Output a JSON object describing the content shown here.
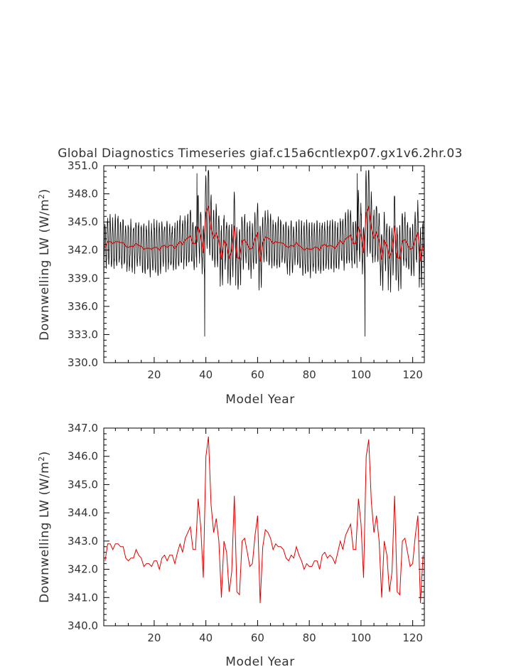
{
  "title": "Global Diagnostics Timeseries giaf.c15a6cntlexp07.gx1v6.2hr.03",
  "chart_data": [
    {
      "type": "line",
      "panel": "top",
      "title": "Global Diagnostics Timeseries giaf.c15a6cntlexp07.gx1v6.2hr.03",
      "xlabel": "Model Year",
      "ylabel": "Downwelling LW (W/m",
      "ylabel_sup": "2",
      "ylabel_end": ")",
      "xlim": [
        0.5,
        124.5
      ],
      "ylim": [
        330.0,
        351.0
      ],
      "xticks": [
        20,
        40,
        60,
        80,
        100,
        120
      ],
      "xtick_labels": [
        "20",
        "40",
        "60",
        "80",
        "100",
        "120"
      ],
      "yticks": [
        330,
        333,
        336,
        339,
        342,
        345,
        348,
        351
      ],
      "ytick_labels": [
        "330.0",
        "333.0",
        "336.0",
        "339.0",
        "342.0",
        "345.0",
        "348.0",
        "351.0"
      ],
      "grid": false,
      "series": [
        {
          "role": "monthly",
          "color": "#000000",
          "description": "monthly values oscillating seasonally about the annual mean"
        },
        {
          "role": "annual",
          "color": "#e00000",
          "description": "annual mean, same values as bottom panel"
        }
      ]
    },
    {
      "type": "line",
      "panel": "bottom",
      "xlabel": "Model Year",
      "ylabel": "Downwelling LW (W/m",
      "ylabel_sup": "2",
      "ylabel_end": ")",
      "xlim": [
        0.5,
        124.5
      ],
      "ylim": [
        340.0,
        347.0
      ],
      "xticks": [
        20,
        40,
        60,
        80,
        100,
        120
      ],
      "xtick_labels": [
        "20",
        "40",
        "60",
        "80",
        "100",
        "120"
      ],
      "yticks": [
        340,
        341,
        342,
        343,
        344,
        345,
        346,
        347
      ],
      "ytick_labels": [
        "340.0",
        "341.0",
        "342.0",
        "343.0",
        "344.0",
        "345.0",
        "346.0",
        "347.0"
      ],
      "grid": false,
      "series": [
        {
          "color": "#e00000",
          "x": [
            1,
            2,
            3,
            4,
            5,
            6,
            7,
            8,
            9,
            10,
            11,
            12,
            13,
            14,
            15,
            16,
            17,
            18,
            19,
            20,
            21,
            22,
            23,
            24,
            25,
            26,
            27,
            28,
            29,
            30,
            31,
            32,
            33,
            34,
            35,
            36,
            37,
            38,
            39,
            40,
            41,
            42,
            43,
            44,
            45,
            46,
            47,
            48,
            49,
            50,
            51,
            52,
            53,
            54,
            55,
            56,
            57,
            58,
            59,
            60,
            61,
            62,
            63,
            64,
            65,
            66,
            67,
            68,
            69,
            70,
            71,
            72,
            73,
            74,
            75,
            76,
            77,
            78,
            79,
            80,
            81,
            82,
            83,
            84,
            85,
            86,
            87,
            88,
            89,
            90,
            91,
            92,
            93,
            94,
            95,
            96,
            97,
            98,
            99,
            100,
            101,
            102,
            103,
            104,
            105,
            106,
            107,
            108,
            109,
            110,
            111,
            112,
            113,
            114,
            115,
            116,
            117,
            118,
            119,
            120,
            121,
            122,
            123,
            124
          ],
          "values": [
            342.3,
            342.9,
            342.9,
            342.7,
            342.9,
            342.9,
            342.8,
            342.8,
            342.4,
            342.3,
            342.4,
            342.4,
            342.7,
            342.5,
            342.4,
            342.1,
            342.2,
            342.2,
            342.1,
            342.3,
            342.3,
            342.0,
            342.4,
            342.5,
            342.3,
            342.5,
            342.5,
            342.2,
            342.6,
            342.9,
            342.6,
            343.1,
            343.3,
            343.5,
            342.7,
            342.7,
            344.5,
            343.5,
            341.7,
            346.0,
            346.7,
            344.3,
            343.3,
            343.8,
            343.0,
            341.0,
            343.0,
            342.6,
            341.2,
            341.9,
            344.6,
            341.2,
            341.1,
            343.0,
            343.1,
            342.6,
            342.1,
            342.2,
            343.2,
            343.9,
            340.8,
            342.8,
            343.4,
            343.3,
            343.1,
            342.7,
            342.9,
            342.8,
            342.8,
            342.7,
            342.4,
            342.3,
            342.5,
            342.4,
            342.8,
            342.5,
            342.3,
            342.0,
            342.2,
            342.1,
            342.1,
            342.3,
            342.3,
            342.0,
            342.5,
            342.6,
            342.4,
            342.5,
            342.4,
            342.2,
            342.6,
            343.0,
            342.7,
            343.2,
            343.4,
            343.6,
            342.7,
            342.7,
            344.5,
            343.6,
            341.7,
            346.0,
            346.6,
            344.4,
            343.3,
            343.9,
            343.0,
            341.0,
            343.0,
            342.5,
            341.2,
            341.9,
            344.6,
            341.2,
            341.1,
            343.0,
            343.1,
            342.6,
            342.1,
            342.2,
            343.2,
            343.9,
            340.8,
            342.5
          ]
        }
      ]
    }
  ]
}
